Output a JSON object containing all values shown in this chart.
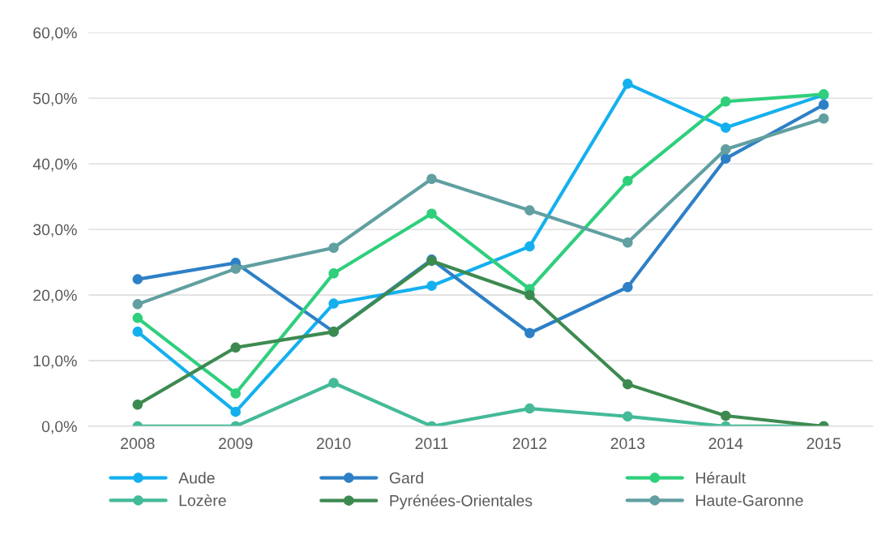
{
  "chart_data": {
    "type": "line",
    "categories": [
      "2008",
      "2009",
      "2010",
      "2011",
      "2012",
      "2013",
      "2014",
      "2015"
    ],
    "series": [
      {
        "name": "Aude",
        "color": "#14b0ee",
        "values": [
          14.4,
          2.2,
          18.7,
          21.4,
          27.4,
          52.2,
          45.5,
          50.5
        ]
      },
      {
        "name": "Gard",
        "color": "#2e80c6",
        "values": [
          22.4,
          24.9,
          14.4,
          25.4,
          14.2,
          21.2,
          40.8,
          49.0
        ]
      },
      {
        "name": "Hérault",
        "color": "#2fcf7c",
        "values": [
          16.5,
          5.0,
          23.3,
          32.4,
          20.9,
          37.4,
          49.5,
          50.6
        ]
      },
      {
        "name": "Lozère",
        "color": "#44ba98",
        "values": [
          0,
          0,
          6.6,
          0,
          2.7,
          1.5,
          0,
          0
        ]
      },
      {
        "name": "Pyrénées-Orientales",
        "color": "#3d8a50",
        "values": [
          3.3,
          12.0,
          14.4,
          25.2,
          20.0,
          6.4,
          1.6,
          0
        ]
      },
      {
        "name": "Haute-Garonne",
        "color": "#619fa1",
        "values": [
          18.6,
          24.0,
          27.2,
          37.7,
          32.9,
          28.0,
          42.2,
          46.9
        ]
      }
    ],
    "ylim": [
      0,
      60
    ],
    "yticks": [
      {
        "value": 0,
        "label": "0,0%"
      },
      {
        "value": 10,
        "label": "10,0%"
      },
      {
        "value": 20,
        "label": "20,0%"
      },
      {
        "value": 30,
        "label": "30,0%"
      },
      {
        "value": 40,
        "label": "40,0%"
      },
      {
        "value": 50,
        "label": "50,0%"
      },
      {
        "value": 60,
        "label": "60,0%"
      }
    ],
    "grid": "y",
    "legend": "bottom",
    "marker": "circle",
    "line_style": "solid"
  }
}
